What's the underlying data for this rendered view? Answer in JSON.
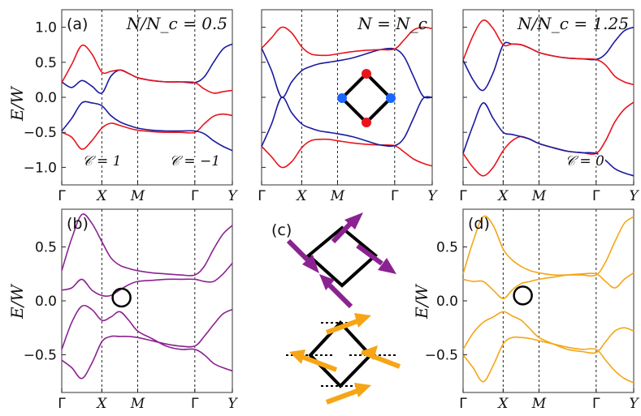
{
  "figure": {
    "ylabel": "E/W",
    "panel_labels": [
      "(a)",
      "(b)",
      "(c)",
      "(d)"
    ]
  },
  "chart_data": [
    {
      "id": "top-left",
      "type": "line",
      "annotation": "N/N_c = 0.5",
      "chern_labels": [
        "𝒞 = 1",
        "𝒞 = −1"
      ],
      "x_ticks": [
        "Γ",
        "X",
        "M",
        "Γ",
        "Y"
      ],
      "y_ticks": [
        "1.0",
        "0.5",
        "0.0",
        "−0.5",
        "−1.0"
      ],
      "ylim": [
        -1.25,
        1.25
      ],
      "series": [
        {
          "name": "band1",
          "color": "#e8141c",
          "x": [
            0,
            0.25,
            0.5,
            0.75,
            1,
            1.25,
            1.5,
            1.75,
            2,
            2.25,
            2.5,
            2.75,
            3,
            3.25,
            3.5,
            3.75,
            4
          ],
          "y": [
            -0.5,
            -0.57,
            -0.74,
            -0.62,
            -0.44,
            -0.37,
            -0.4,
            -0.44,
            -0.47,
            -0.49,
            -0.5,
            -0.5,
            -0.5,
            -0.38,
            -0.27,
            -0.24,
            -0.26
          ]
        },
        {
          "name": "band2",
          "color": "#1a1a9f",
          "x": [
            0,
            0.25,
            0.5,
            0.75,
            1,
            1.25,
            1.5,
            1.75,
            2,
            2.25,
            2.5,
            2.75,
            3,
            3.25,
            3.5,
            3.75,
            4
          ],
          "y": [
            -0.48,
            -0.3,
            -0.08,
            -0.08,
            -0.12,
            -0.26,
            -0.35,
            -0.4,
            -0.44,
            -0.47,
            -0.48,
            -0.48,
            -0.48,
            -0.52,
            -0.62,
            -0.7,
            -0.76
          ]
        },
        {
          "name": "band3",
          "color": "#1a1a9f",
          "x": [
            0,
            0.25,
            0.5,
            0.75,
            1,
            1.25,
            1.5,
            1.75,
            2,
            2.25,
            2.5,
            2.75,
            3,
            3.25,
            3.5,
            3.75,
            4
          ],
          "y": [
            0.22,
            0.14,
            0.24,
            0.16,
            0.06,
            0.3,
            0.39,
            0.34,
            0.28,
            0.24,
            0.22,
            0.22,
            0.21,
            0.29,
            0.5,
            0.69,
            0.76
          ]
        },
        {
          "name": "band4",
          "color": "#e8141c",
          "x": [
            0,
            0.25,
            0.5,
            0.75,
            1,
            1.25,
            1.5,
            1.75,
            2,
            2.25,
            2.5,
            2.75,
            3,
            3.25,
            3.5,
            3.75,
            4
          ],
          "y": [
            0.21,
            0.47,
            0.74,
            0.62,
            0.36,
            0.37,
            0.39,
            0.34,
            0.28,
            0.24,
            0.22,
            0.22,
            0.21,
            0.12,
            0.06,
            0.08,
            0.1
          ]
        }
      ]
    },
    {
      "id": "top-middle",
      "type": "line",
      "annotation": "N = N_c",
      "x_ticks": [
        "Γ",
        "X",
        "M",
        "Γ",
        "Y"
      ],
      "ylim": [
        -1.25,
        1.25
      ],
      "series": [
        {
          "name": "band1",
          "color": "#e8141c",
          "x": [
            0,
            0.25,
            0.5,
            0.75,
            1,
            1.25,
            1.5,
            1.75,
            2,
            2.25,
            2.5,
            2.75,
            3,
            3.25,
            3.5,
            3.75,
            4
          ],
          "y": [
            -0.7,
            -0.85,
            -1.0,
            -0.92,
            -0.72,
            -0.62,
            -0.6,
            -0.6,
            -0.62,
            -0.65,
            -0.67,
            -0.68,
            -0.69,
            -0.78,
            -0.88,
            -0.94,
            -0.98
          ]
        },
        {
          "name": "band2",
          "color": "#1a1a9f",
          "x": [
            0,
            0.25,
            0.5,
            0.75,
            1,
            1.25,
            1.5,
            1.75,
            2,
            2.25,
            2.5,
            2.75,
            3,
            3.25,
            3.5,
            3.75,
            4
          ],
          "y": [
            -0.7,
            -0.38,
            0.0,
            -0.22,
            -0.38,
            -0.44,
            -0.48,
            -0.5,
            -0.52,
            -0.56,
            -0.62,
            -0.68,
            -0.69,
            -0.58,
            -0.3,
            -0.02,
            0.0
          ]
        },
        {
          "name": "band3",
          "color": "#1a1a9f",
          "x": [
            0,
            0.25,
            0.5,
            0.75,
            1,
            1.25,
            1.5,
            1.75,
            2,
            2.25,
            2.5,
            2.75,
            3,
            3.25,
            3.5,
            3.75,
            4
          ],
          "y": [
            0.7,
            0.38,
            0.0,
            0.22,
            0.38,
            0.44,
            0.48,
            0.5,
            0.52,
            0.56,
            0.62,
            0.68,
            0.69,
            0.58,
            0.3,
            0.02,
            0.0
          ]
        },
        {
          "name": "band4",
          "color": "#e8141c",
          "x": [
            0,
            0.25,
            0.5,
            0.75,
            1,
            1.25,
            1.5,
            1.75,
            2,
            2.25,
            2.5,
            2.75,
            3,
            3.25,
            3.5,
            3.75,
            4
          ],
          "y": [
            0.7,
            0.85,
            1.0,
            0.92,
            0.72,
            0.62,
            0.6,
            0.6,
            0.62,
            0.65,
            0.67,
            0.68,
            0.69,
            0.82,
            0.96,
            1.0,
            0.98
          ]
        }
      ]
    },
    {
      "id": "top-right",
      "type": "line",
      "annotation": "N/N_c = 1.25",
      "chern_labels": [
        "𝒞 = 0"
      ],
      "x_ticks": [
        "Γ",
        "X",
        "M",
        "Γ",
        "Y"
      ],
      "ylim": [
        -1.25,
        1.25
      ],
      "series": [
        {
          "name": "band1",
          "color": "#e8141c",
          "x": [
            0,
            0.25,
            0.5,
            0.75,
            1,
            1.25,
            1.5,
            1.75,
            2,
            2.25,
            2.5,
            2.75,
            3,
            3.25,
            3.5,
            3.75,
            4
          ],
          "y": [
            -0.8,
            -1.0,
            -1.12,
            -1.0,
            -0.76,
            -0.62,
            -0.56,
            -0.6,
            -0.66,
            -0.72,
            -0.77,
            -0.79,
            -0.8,
            -0.62,
            -0.35,
            -0.17,
            -0.07
          ]
        },
        {
          "name": "band2",
          "color": "#1a1a9f",
          "x": [
            0,
            0.25,
            0.5,
            0.75,
            1,
            1.25,
            1.5,
            1.75,
            2,
            2.25,
            2.5,
            2.75,
            3,
            3.25,
            3.5,
            3.75,
            4
          ],
          "y": [
            -0.8,
            -0.4,
            -0.08,
            -0.3,
            -0.5,
            -0.53,
            -0.56,
            -0.6,
            -0.66,
            -0.72,
            -0.77,
            -0.79,
            -0.8,
            -0.9,
            -1.02,
            -1.08,
            -1.12
          ]
        },
        {
          "name": "band3",
          "color": "#1a1a9f",
          "x": [
            0,
            0.25,
            0.5,
            0.75,
            1,
            1.25,
            1.5,
            1.75,
            2,
            2.25,
            2.5,
            2.75,
            3,
            3.25,
            3.5,
            3.75,
            4
          ],
          "y": [
            0.53,
            0.25,
            0.1,
            0.35,
            0.75,
            0.76,
            0.75,
            0.7,
            0.64,
            0.59,
            0.56,
            0.55,
            0.54,
            0.62,
            0.8,
            0.95,
            1.0
          ]
        },
        {
          "name": "band4",
          "color": "#e8141c",
          "x": [
            0,
            0.25,
            0.5,
            0.75,
            1,
            1.25,
            1.5,
            1.75,
            2,
            2.25,
            2.5,
            2.75,
            3,
            3.25,
            3.5,
            3.75,
            4
          ],
          "y": [
            0.53,
            0.88,
            1.1,
            0.98,
            0.75,
            0.76,
            0.75,
            0.7,
            0.64,
            0.59,
            0.56,
            0.55,
            0.54,
            0.46,
            0.3,
            0.22,
            0.18
          ]
        }
      ]
    },
    {
      "id": "bottom-left",
      "type": "line",
      "x_ticks": [
        "Γ",
        "X",
        "M",
        "Γ",
        "Y"
      ],
      "y_ticks": [
        "0.5",
        "0.0",
        "−0.5"
      ],
      "ylim": [
        -0.85,
        0.85
      ],
      "highlight": {
        "x": 1.55,
        "y": 0.03
      },
      "series": [
        {
          "name": "band1",
          "color": "#8b2291",
          "x": [
            0,
            0.25,
            0.5,
            0.75,
            1,
            1.25,
            1.5,
            1.75,
            2,
            2.25,
            2.5,
            2.75,
            3,
            3.25,
            3.5,
            3.75,
            4
          ],
          "y": [
            -0.55,
            -0.62,
            -0.72,
            -0.58,
            -0.38,
            -0.33,
            -0.33,
            -0.33,
            -0.34,
            -0.37,
            -0.4,
            -0.42,
            -0.42,
            -0.33,
            -0.22,
            -0.12,
            -0.08
          ]
        },
        {
          "name": "band2",
          "color": "#8b2291",
          "x": [
            0,
            0.25,
            0.5,
            0.75,
            1,
            1.25,
            1.5,
            1.75,
            2,
            2.25,
            2.5,
            2.75,
            3,
            3.25,
            3.5,
            3.75,
            4
          ],
          "y": [
            -0.45,
            -0.2,
            -0.05,
            -0.08,
            -0.18,
            -0.15,
            -0.1,
            -0.18,
            -0.28,
            -0.35,
            -0.42,
            -0.45,
            -0.45,
            -0.5,
            -0.58,
            -0.62,
            -0.65
          ]
        },
        {
          "name": "band3",
          "color": "#8b2291",
          "x": [
            0,
            0.25,
            0.5,
            0.75,
            1,
            1.25,
            1.5,
            1.75,
            2,
            2.25,
            2.5,
            2.75,
            3,
            3.25,
            3.5,
            3.75,
            4
          ],
          "y": [
            0.1,
            0.12,
            0.2,
            0.1,
            0.05,
            0.05,
            0.1,
            0.15,
            0.18,
            0.19,
            0.2,
            0.2,
            0.2,
            0.18,
            0.18,
            0.25,
            0.35
          ]
        },
        {
          "name": "band4",
          "color": "#8b2291",
          "x": [
            0,
            0.25,
            0.5,
            0.75,
            1,
            1.25,
            1.5,
            1.75,
            2,
            2.25,
            2.5,
            2.75,
            3,
            3.25,
            3.5,
            3.75,
            4
          ],
          "y": [
            0.28,
            0.58,
            0.8,
            0.72,
            0.55,
            0.4,
            0.33,
            0.3,
            0.28,
            0.26,
            0.25,
            0.24,
            0.24,
            0.32,
            0.48,
            0.62,
            0.7
          ]
        }
      ]
    },
    {
      "id": "bottom-right",
      "type": "line",
      "x_ticks": [
        "Γ",
        "X",
        "M",
        "Γ",
        "Y"
      ],
      "y_ticks": [
        "0.5",
        "0.0",
        "−0.5"
      ],
      "ylim": [
        -0.85,
        0.85
      ],
      "highlight": {
        "x": 1.55,
        "y": 0.05
      },
      "series": [
        {
          "name": "band1",
          "color": "#f5a516",
          "x": [
            0,
            0.25,
            0.5,
            0.75,
            1,
            1.25,
            1.5,
            1.75,
            2,
            2.25,
            2.5,
            2.75,
            3,
            3.25,
            3.5,
            3.75,
            4
          ],
          "y": [
            -0.5,
            -0.62,
            -0.75,
            -0.6,
            -0.4,
            -0.34,
            -0.34,
            -0.35,
            -0.37,
            -0.4,
            -0.43,
            -0.45,
            -0.45,
            -0.55,
            -0.65,
            -0.72,
            -0.76
          ]
        },
        {
          "name": "band2",
          "color": "#f5a516",
          "x": [
            0,
            0.25,
            0.5,
            0.75,
            1,
            1.25,
            1.5,
            1.75,
            2,
            2.25,
            2.5,
            2.75,
            3,
            3.25,
            3.5,
            3.75,
            4
          ],
          "y": [
            -0.45,
            -0.3,
            -0.2,
            -0.15,
            -0.1,
            -0.14,
            -0.18,
            -0.26,
            -0.34,
            -0.4,
            -0.45,
            -0.47,
            -0.48,
            -0.38,
            -0.28,
            -0.25,
            -0.28
          ]
        },
        {
          "name": "band3",
          "color": "#f5a516",
          "x": [
            0,
            0.25,
            0.5,
            0.75,
            1,
            1.25,
            1.5,
            1.75,
            2,
            2.25,
            2.5,
            2.75,
            3,
            3.25,
            3.5,
            3.75,
            4
          ],
          "y": [
            0.2,
            0.18,
            0.18,
            0.1,
            0.02,
            0.1,
            0.16,
            0.18,
            0.2,
            0.22,
            0.24,
            0.25,
            0.25,
            0.18,
            0.12,
            0.2,
            0.26
          ]
        },
        {
          "name": "band4",
          "color": "#f5a516",
          "x": [
            0,
            0.25,
            0.5,
            0.75,
            1,
            1.25,
            1.5,
            1.75,
            2,
            2.25,
            2.5,
            2.75,
            3,
            3.25,
            3.5,
            3.75,
            4
          ],
          "y": [
            0.25,
            0.55,
            0.78,
            0.7,
            0.48,
            0.38,
            0.32,
            0.28,
            0.26,
            0.24,
            0.24,
            0.24,
            0.24,
            0.36,
            0.55,
            0.72,
            0.78
          ]
        }
      ]
    }
  ],
  "schematic_c": {
    "arrow_color_top": "#8b2291",
    "arrow_color_bottom": "#f5a516",
    "site_colors": [
      "#e8141c",
      "#1a66ff"
    ]
  }
}
